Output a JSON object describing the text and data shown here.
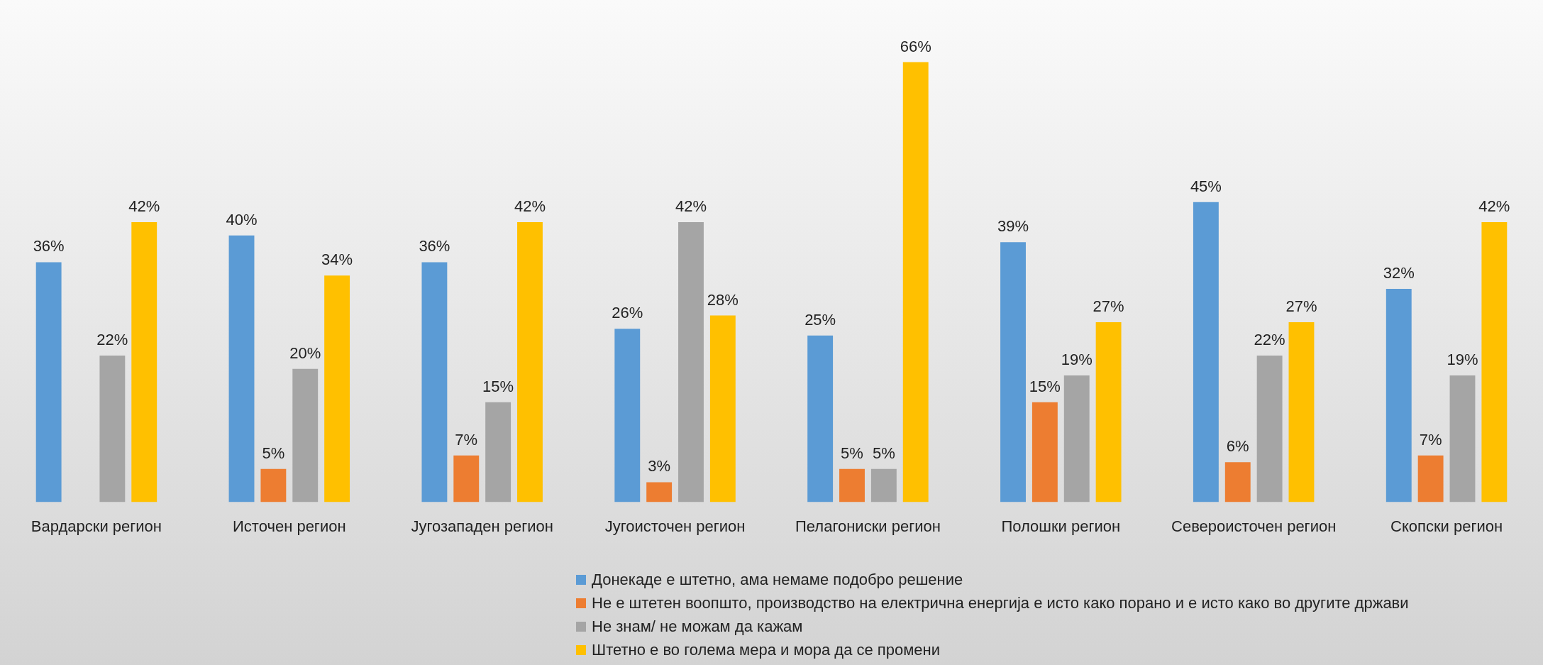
{
  "chart_data": {
    "type": "bar",
    "categories": [
      "Вардарски регион",
      "Источен регион",
      "Југозападен регион",
      "Југоисточен регион",
      "Пелагониски регион",
      "Полошки регион",
      "Североисточен регион",
      "Скопски регион"
    ],
    "series": [
      {
        "name": "Донекаде е штетно, ама немаме подобро решение",
        "color": "#5b9bd5",
        "values": [
          36,
          40,
          36,
          26,
          25,
          39,
          45,
          32
        ],
        "value_labels": [
          "36%",
          "40%",
          "36%",
          "26%",
          "25%",
          "39%",
          "45%",
          "32%"
        ]
      },
      {
        "name": "Не е штетен воопшто, производство на електрична енергија е исто како порано и е исто како во другите држави",
        "color": "#ed7d31",
        "values": [
          null,
          5,
          7,
          3,
          5,
          15,
          6,
          7
        ],
        "value_labels": [
          null,
          "5%",
          "7%",
          "3%",
          "5%",
          "15%",
          "6%",
          "7%"
        ]
      },
      {
        "name": "Не знам/ не можам да кажам",
        "color": "#a5a5a5",
        "values": [
          22,
          20,
          15,
          42,
          5,
          19,
          22,
          19
        ],
        "value_labels": [
          "22%",
          "20%",
          "15%",
          "42%",
          "5%",
          "19%",
          "22%",
          "19%"
        ]
      },
      {
        "name": "Штетно е во голема мера и мора да се промени",
        "color": "#ffc000",
        "values": [
          42,
          34,
          42,
          28,
          66,
          27,
          27,
          42
        ],
        "value_labels": [
          "42%",
          "34%",
          "42%",
          "28%",
          "66%",
          "27%",
          "27%",
          "42%"
        ]
      }
    ],
    "legend": "bottom"
  }
}
